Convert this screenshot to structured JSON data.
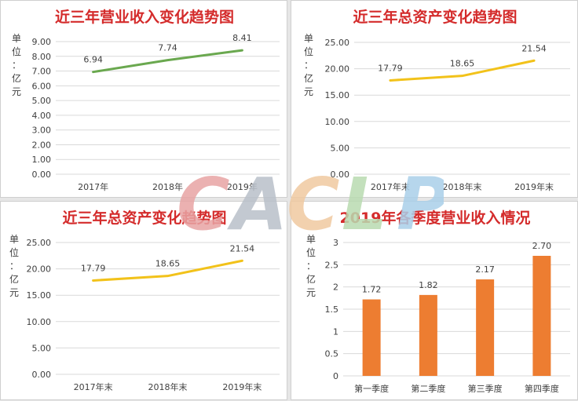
{
  "colors": {
    "title": "#d42b2b",
    "green_line": "#6aa84f",
    "gold_line": "#f2c21a",
    "bar": "#ed7d31",
    "grid": "#d9d9d9",
    "text": "#404040"
  },
  "watermark": {
    "letters": [
      {
        "char": "C",
        "color": "#e8a3a3"
      },
      {
        "char": "A",
        "color": "#b9bfc9"
      },
      {
        "char": "C",
        "color": "#f0c9a0"
      },
      {
        "char": "L",
        "color": "#b9dbb0"
      },
      {
        "char": "P",
        "color": "#a9cfe9"
      }
    ]
  },
  "chart_data": [
    {
      "type": "line",
      "title": "近三年营业收入变化趋势图",
      "ylabel": "单位：亿元",
      "categories": [
        "2017年",
        "2018年",
        "2019年"
      ],
      "series": [
        {
          "values": [
            6.94,
            7.74,
            8.41
          ]
        }
      ],
      "data_labels": [
        "6.94",
        "7.74",
        "8.41"
      ],
      "yticks": [
        "0.00",
        "1.00",
        "2.00",
        "3.00",
        "4.00",
        "5.00",
        "6.00",
        "7.00",
        "8.00",
        "9.00"
      ],
      "ylim": [
        0,
        9
      ],
      "color_key": "green_line",
      "grid": true
    },
    {
      "type": "line",
      "title": "近三年总资产变化趋势图",
      "ylabel": "单位：亿元",
      "categories": [
        "2017年末",
        "2018年末",
        "2019年末"
      ],
      "series": [
        {
          "values": [
            17.79,
            18.65,
            21.54
          ]
        }
      ],
      "data_labels": [
        "17.79",
        "18.65",
        "21.54"
      ],
      "yticks": [
        "0.00",
        "5.00",
        "10.00",
        "15.00",
        "20.00",
        "25.00"
      ],
      "ylim": [
        0,
        25
      ],
      "color_key": "gold_line",
      "grid": true
    },
    {
      "type": "line",
      "title": "近三年总资产变化趋势图",
      "ylabel": "单位：亿元",
      "categories": [
        "2017年末",
        "2018年末",
        "2019年末"
      ],
      "series": [
        {
          "values": [
            17.79,
            18.65,
            21.54
          ]
        }
      ],
      "data_labels": [
        "17.79",
        "18.65",
        "21.54"
      ],
      "yticks": [
        "0.00",
        "5.00",
        "10.00",
        "15.00",
        "20.00",
        "25.00"
      ],
      "ylim": [
        0,
        25
      ],
      "color_key": "gold_line",
      "grid": true
    },
    {
      "type": "bar",
      "title": "2019年各季度营业收入情况",
      "ylabel": "单位：亿元",
      "categories": [
        "第一季度",
        "第二季度",
        "第三季度",
        "第四季度"
      ],
      "series": [
        {
          "values": [
            1.72,
            1.82,
            2.17,
            2.7
          ]
        }
      ],
      "data_labels": [
        "1.72",
        "1.82",
        "2.17",
        "2.70"
      ],
      "yticks": [
        "0",
        "0.5",
        "1",
        "1.5",
        "2",
        "2.5",
        "3"
      ],
      "ylim": [
        0,
        3
      ],
      "color_key": "bar",
      "grid": true
    }
  ]
}
